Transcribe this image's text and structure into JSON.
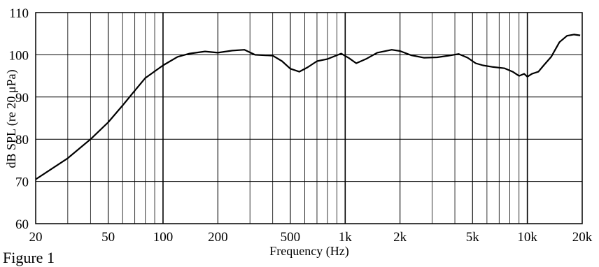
{
  "chart_data": {
    "type": "line",
    "title": "",
    "xlabel": "Frequency (Hz)",
    "ylabel": "dB SPL (re 20 μPa)",
    "xscale": "log",
    "xlim": [
      20,
      20000
    ],
    "ylim": [
      60,
      110
    ],
    "grid": true,
    "x_ticks": [
      {
        "value": 20,
        "label": "20"
      },
      {
        "value": 50,
        "label": "50"
      },
      {
        "value": 100,
        "label": "100"
      },
      {
        "value": 200,
        "label": "200"
      },
      {
        "value": 500,
        "label": "500"
      },
      {
        "value": 1000,
        "label": "1k"
      },
      {
        "value": 2000,
        "label": "2k"
      },
      {
        "value": 5000,
        "label": "5k"
      },
      {
        "value": 10000,
        "label": "10k"
      },
      {
        "value": 20000,
        "label": "20k"
      }
    ],
    "y_ticks": [
      {
        "value": 60,
        "label": "60"
      },
      {
        "value": 70,
        "label": "70"
      },
      {
        "value": 80,
        "label": "80"
      },
      {
        "value": 90,
        "label": "90"
      },
      {
        "value": 100,
        "label": "100"
      },
      {
        "value": 110,
        "label": "110"
      }
    ],
    "series": [
      {
        "color": "#000000",
        "x": [
          20,
          30,
          40,
          50,
          60,
          70,
          80,
          100,
          120,
          140,
          170,
          200,
          240,
          280,
          320,
          400,
          450,
          500,
          560,
          620,
          700,
          800,
          950,
          1050,
          1150,
          1300,
          1500,
          1800,
          2000,
          2300,
          2700,
          3200,
          3700,
          4200,
          4700,
          5200,
          5700,
          6500,
          7500,
          8300,
          9000,
          9600,
          10000,
          10600,
          11500,
          12300,
          13500,
          15000,
          16500,
          18000,
          19500
        ],
        "y": [
          70.5,
          75.5,
          80,
          84,
          88,
          91.5,
          94.5,
          97.5,
          99.5,
          100.3,
          100.8,
          100.5,
          101,
          101.2,
          100,
          99.8,
          98.5,
          96.7,
          96,
          97,
          98.5,
          99,
          100.3,
          99.2,
          98,
          99,
          100.5,
          101.2,
          100.9,
          99.9,
          99.3,
          99.4,
          99.8,
          100.2,
          99.3,
          98,
          97.5,
          97.1,
          96.8,
          96,
          95,
          95.5,
          94.8,
          95.5,
          96,
          97.5,
          99.5,
          103,
          104.5,
          104.8,
          104.6
        ]
      }
    ]
  },
  "caption": "Figure 1"
}
